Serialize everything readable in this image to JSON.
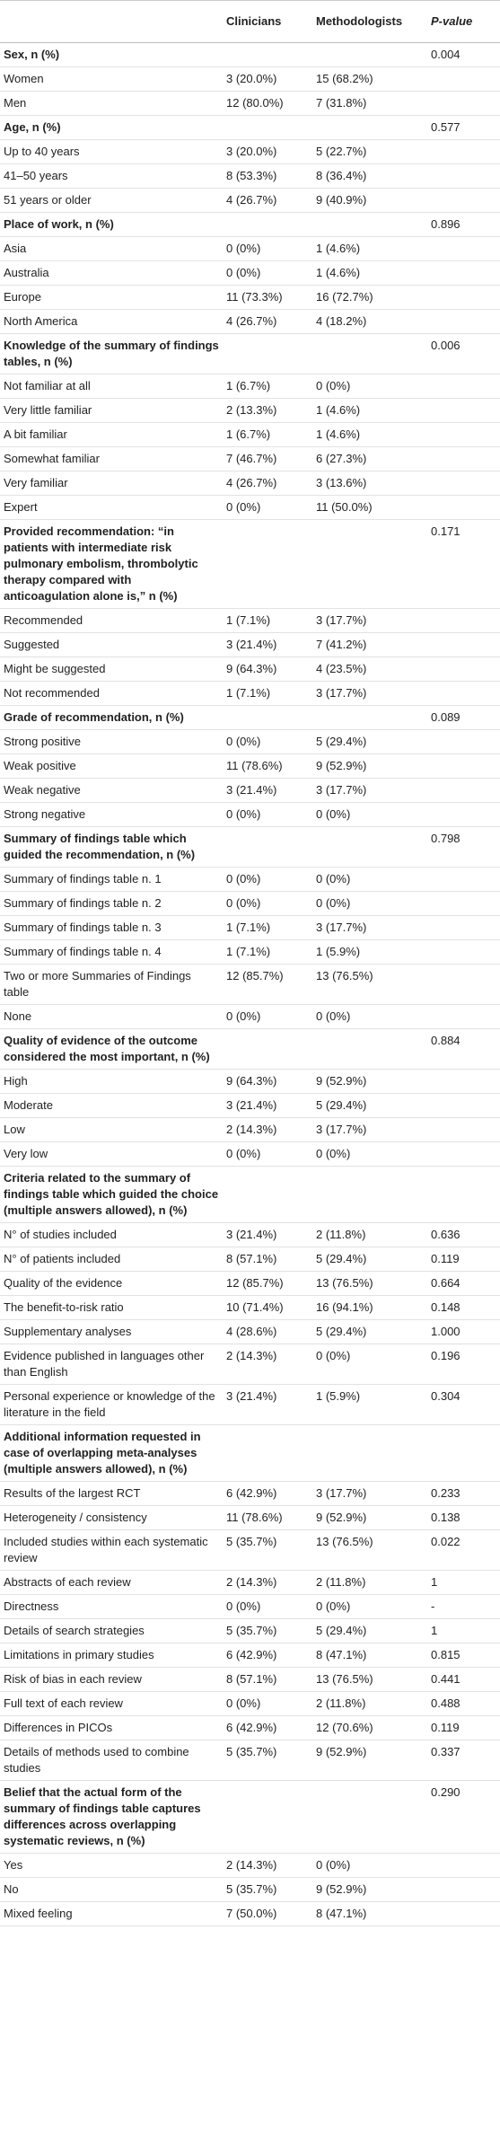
{
  "table": {
    "header": {
      "clinicians": "Clinicians",
      "methodologists": "Methodologists",
      "p_value": "P-value"
    },
    "sections": [
      {
        "title": "Sex, n (%)",
        "p_value": "0.004",
        "rows": [
          {
            "label": "Women",
            "clinicians": "3 (20.0%)",
            "methodologists": "15 (68.2%)"
          },
          {
            "label": "Men",
            "clinicians": "12 (80.0%)",
            "methodologists": "7 (31.8%)"
          }
        ]
      },
      {
        "title": "Age, n (%)",
        "p_value": "0.577",
        "rows": [
          {
            "label": "Up to 40 years",
            "clinicians": "3 (20.0%)",
            "methodologists": "5 (22.7%)"
          },
          {
            "label": "41–50 years",
            "clinicians": "8 (53.3%)",
            "methodologists": "8 (36.4%)"
          },
          {
            "label": "51 years or older",
            "clinicians": "4 (26.7%)",
            "methodologists": "9 (40.9%)"
          }
        ]
      },
      {
        "title": "Place of work, n (%)",
        "p_value": "0.896",
        "rows": [
          {
            "label": "Asia",
            "clinicians": "0 (0%)",
            "methodologists": "1 (4.6%)"
          },
          {
            "label": "Australia",
            "clinicians": "0 (0%)",
            "methodologists": "1 (4.6%)"
          },
          {
            "label": "Europe",
            "clinicians": "11 (73.3%)",
            "methodologists": "16 (72.7%)"
          },
          {
            "label": "North America",
            "clinicians": "4 (26.7%)",
            "methodologists": "4 (18.2%)"
          }
        ]
      },
      {
        "title": "Knowledge of the summary of findings tables, n (%)",
        "p_value": "0.006",
        "rows": [
          {
            "label": "Not familiar at all",
            "clinicians": "1 (6.7%)",
            "methodologists": "0 (0%)"
          },
          {
            "label": "Very little familiar",
            "clinicians": "2 (13.3%)",
            "methodologists": "1 (4.6%)"
          },
          {
            "label": "A bit familiar",
            "clinicians": "1 (6.7%)",
            "methodologists": "1 (4.6%)"
          },
          {
            "label": "Somewhat familiar",
            "clinicians": "7 (46.7%)",
            "methodologists": "6 (27.3%)"
          },
          {
            "label": "Very familiar",
            "clinicians": "4 (26.7%)",
            "methodologists": "3 (13.6%)"
          },
          {
            "label": "Expert",
            "clinicians": "0 (0%)",
            "methodologists": "11 (50.0%)"
          }
        ]
      },
      {
        "title": "Provided recommendation: “in patients with intermediate risk pulmonary embolism, thrombolytic therapy compared with anticoagulation alone is,” n (%)",
        "p_value": "0.171",
        "rows": [
          {
            "label": "Recommended",
            "clinicians": "1 (7.1%)",
            "methodologists": "3 (17.7%)"
          },
          {
            "label": "Suggested",
            "clinicians": "3 (21.4%)",
            "methodologists": "7 (41.2%)"
          },
          {
            "label": "Might be suggested",
            "clinicians": "9 (64.3%)",
            "methodologists": "4 (23.5%)"
          },
          {
            "label": "Not recommended",
            "clinicians": "1 (7.1%)",
            "methodologists": "3 (17.7%)"
          }
        ]
      },
      {
        "title": "Grade of recommendation, n (%)",
        "p_value": "0.089",
        "rows": [
          {
            "label": "Strong positive",
            "clinicians": "0 (0%)",
            "methodologists": "5 (29.4%)"
          },
          {
            "label": "Weak positive",
            "clinicians": "11 (78.6%)",
            "methodologists": "9 (52.9%)"
          },
          {
            "label": "Weak negative",
            "clinicians": "3 (21.4%)",
            "methodologists": "3 (17.7%)"
          },
          {
            "label": "Strong negative",
            "clinicians": "0 (0%)",
            "methodologists": "0 (0%)"
          }
        ]
      },
      {
        "title": "Summary of findings table which guided the recommendation, n (%)",
        "p_value": "0.798",
        "rows": [
          {
            "label": "Summary of findings table n. 1",
            "clinicians": "0 (0%)",
            "methodologists": "0 (0%)"
          },
          {
            "label": "Summary of findings table n. 2",
            "clinicians": "0 (0%)",
            "methodologists": "0 (0%)"
          },
          {
            "label": "Summary of findings table n. 3",
            "clinicians": "1 (7.1%)",
            "methodologists": "3 (17.7%)"
          },
          {
            "label": "Summary of findings table n. 4",
            "clinicians": "1 (7.1%)",
            "methodologists": "1 (5.9%)"
          },
          {
            "label": "Two or more Summaries of Findings table",
            "clinicians": "12 (85.7%)",
            "methodologists": "13 (76.5%)"
          },
          {
            "label": "None",
            "clinicians": "0 (0%)",
            "methodologists": "0 (0%)"
          }
        ]
      },
      {
        "title": "Quality of evidence of the outcome considered the most important, n (%)",
        "p_value": "0.884",
        "rows": [
          {
            "label": "High",
            "clinicians": "9 (64.3%)",
            "methodologists": "9 (52.9%)"
          },
          {
            "label": "Moderate",
            "clinicians": "3 (21.4%)",
            "methodologists": "5 (29.4%)"
          },
          {
            "label": "Low",
            "clinicians": "2 (14.3%)",
            "methodologists": "3 (17.7%)"
          },
          {
            "label": "Very low",
            "clinicians": "0 (0%)",
            "methodologists": "0 (0%)"
          }
        ]
      },
      {
        "title": "Criteria related to the summary of findings table which guided the choice (multiple answers allowed), n (%)",
        "rows": [
          {
            "label": "N° of studies included",
            "clinicians": "3 (21.4%)",
            "methodologists": "2 (11.8%)",
            "p_value": "0.636"
          },
          {
            "label": "N° of patients included",
            "clinicians": "8 (57.1%)",
            "methodologists": "5 (29.4%)",
            "p_value": "0.119"
          },
          {
            "label": "Quality of the evidence",
            "clinicians": "12 (85.7%)",
            "methodologists": "13 (76.5%)",
            "p_value": "0.664"
          },
          {
            "label": "The benefit-to-risk ratio",
            "clinicians": "10 (71.4%)",
            "methodologists": "16 (94.1%)",
            "p_value": "0.148"
          },
          {
            "label": "Supplementary analyses",
            "clinicians": "4 (28.6%)",
            "methodologists": "5 (29.4%)",
            "p_value": "1.000"
          },
          {
            "label": "Evidence published in languages other than English",
            "clinicians": "2 (14.3%)",
            "methodologists": "0 (0%)",
            "p_value": "0.196"
          },
          {
            "label": "Personal experience or knowledge of the literature in the field",
            "clinicians": "3 (21.4%)",
            "methodologists": "1 (5.9%)",
            "p_value": "0.304"
          }
        ]
      },
      {
        "title": "Additional information requested in case of overlapping meta-analyses (multiple answers allowed), n (%)",
        "rows": [
          {
            "label": "Results of the largest RCT",
            "clinicians": "6 (42.9%)",
            "methodologists": "3 (17.7%)",
            "p_value": "0.233"
          },
          {
            "label": "Heterogeneity / consistency",
            "clinicians": "11 (78.6%)",
            "methodologists": "9 (52.9%)",
            "p_value": "0.138"
          },
          {
            "label": "Included studies within each systematic review",
            "clinicians": "5 (35.7%)",
            "methodologists": "13 (76.5%)",
            "p_value": "0.022"
          },
          {
            "label": "Abstracts of each review",
            "clinicians": "2 (14.3%)",
            "methodologists": "2 (11.8%)",
            "p_value": "1"
          },
          {
            "label": "Directness",
            "clinicians": "0 (0%)",
            "methodologists": "0 (0%)",
            "p_value": "-"
          },
          {
            "label": "Details of search strategies",
            "clinicians": "5 (35.7%)",
            "methodologists": "5 (29.4%)",
            "p_value": "1"
          },
          {
            "label": "Limitations in primary studies",
            "clinicians": "6 (42.9%)",
            "methodologists": "8 (47.1%)",
            "p_value": "0.815"
          },
          {
            "label": "Risk of bias in each review",
            "clinicians": "8 (57.1%)",
            "methodologists": "13 (76.5%)",
            "p_value": "0.441"
          },
          {
            "label": "Full text of each review",
            "clinicians": "0 (0%)",
            "methodologists": "2 (11.8%)",
            "p_value": "0.488"
          },
          {
            "label": "Differences in PICOs",
            "clinicians": "6 (42.9%)",
            "methodologists": "12 (70.6%)",
            "p_value": "0.119"
          },
          {
            "label": "Details of methods used to combine studies",
            "clinicians": "5 (35.7%)",
            "methodologists": "9 (52.9%)",
            "p_value": "0.337"
          }
        ]
      },
      {
        "title": "Belief that the actual form of the summary of findings table captures differences across overlapping systematic reviews, n (%)",
        "p_value": "0.290",
        "rows": [
          {
            "label": "Yes",
            "clinicians": "2 (14.3%)",
            "methodologists": "0 (0%)"
          },
          {
            "label": "No",
            "clinicians": "5 (35.7%)",
            "methodologists": "9 (52.9%)"
          },
          {
            "label": "Mixed feeling",
            "clinicians": "7 (50.0%)",
            "methodologists": "8 (47.1%)"
          }
        ]
      }
    ]
  }
}
